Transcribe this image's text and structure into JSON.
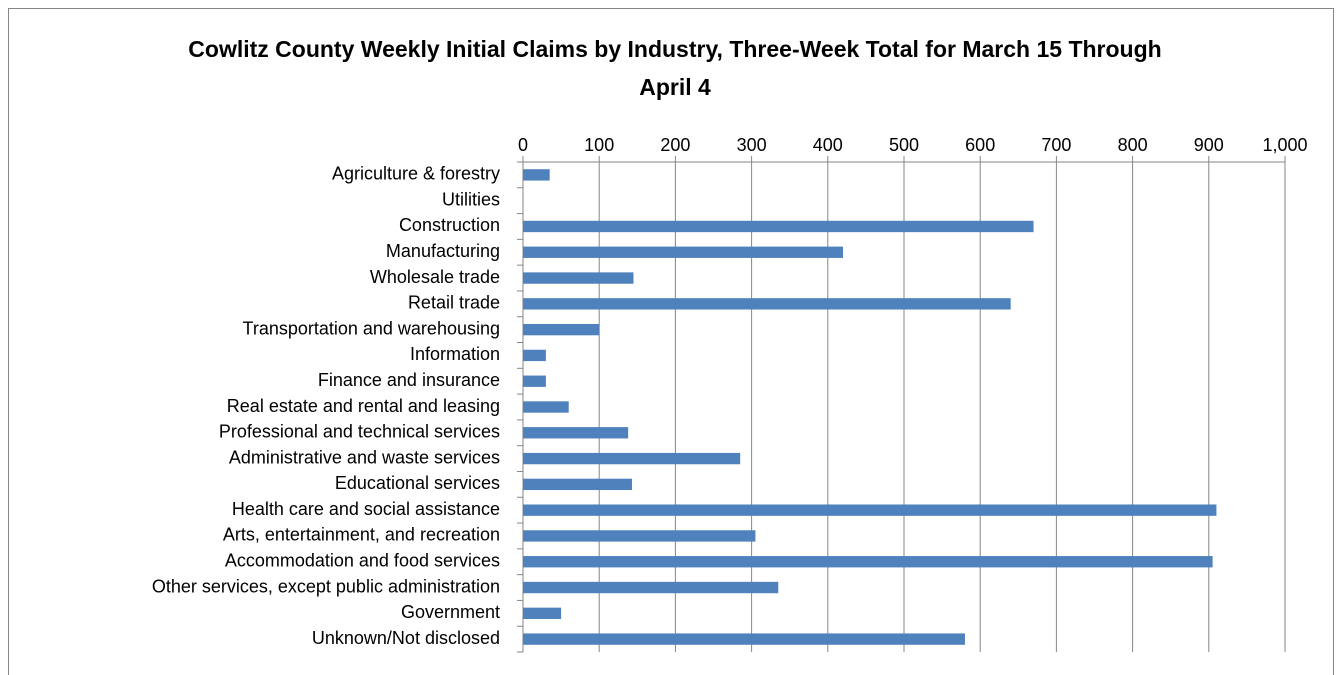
{
  "chart_data": {
    "type": "bar",
    "orientation": "horizontal",
    "title": "Cowlitz County Weekly Initial Claims by Industry, Three-Week Total for March 15 Through April 4",
    "categories": [
      "Agriculture & forestry",
      "Utilities",
      "Construction",
      "Manufacturing",
      "Wholesale trade",
      "Retail trade",
      "Transportation and warehousing",
      "Information",
      "Finance and insurance",
      "Real estate and rental and leasing",
      "Professional and technical services",
      "Administrative and waste services",
      "Educational services",
      "Health care and social assistance",
      "Arts, entertainment, and recreation",
      "Accommodation and food services",
      "Other services, except public administration",
      "Government",
      "Unknown/Not disclosed"
    ],
    "values": [
      35,
      0,
      670,
      420,
      145,
      640,
      100,
      30,
      30,
      60,
      138,
      285,
      143,
      910,
      305,
      905,
      335,
      50,
      580
    ],
    "color": "#4f81bd",
    "xlim": [
      0,
      1000
    ],
    "xticks": [
      0,
      100,
      200,
      300,
      400,
      500,
      600,
      700,
      800,
      900,
      {
        "value": 1000,
        "label": "1,000"
      }
    ],
    "grid": true
  }
}
